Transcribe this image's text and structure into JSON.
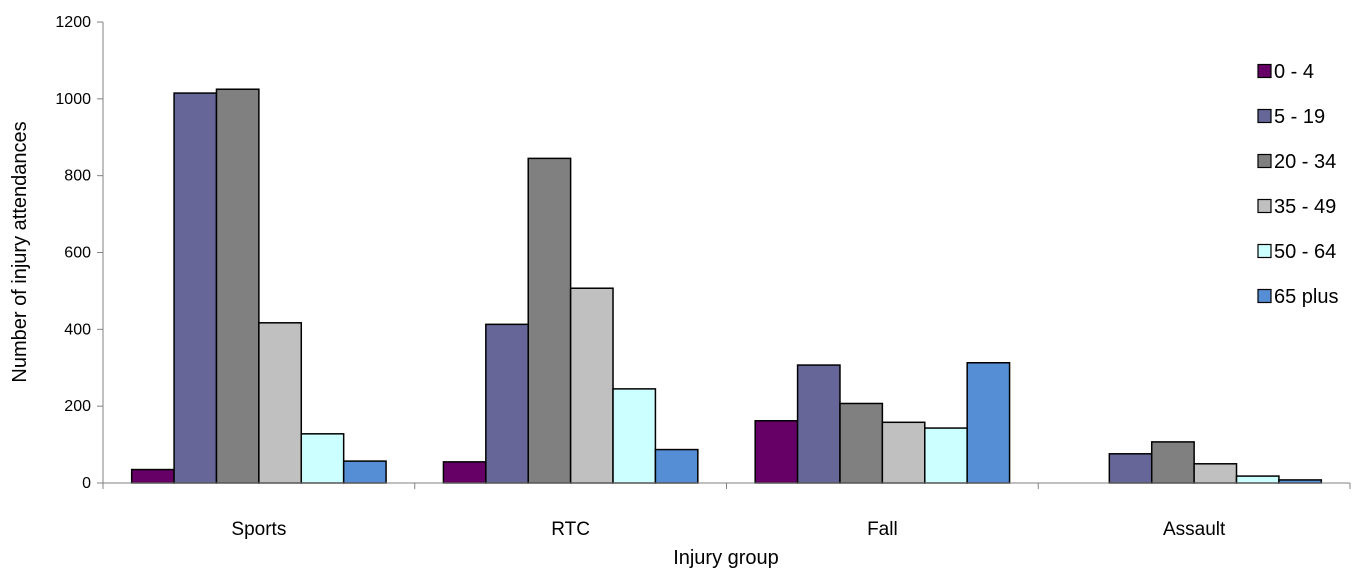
{
  "chart_data": {
    "type": "bar",
    "title": "",
    "xlabel": "Injury group",
    "ylabel": "Number of injury attendances",
    "ylim": [
      0,
      1200
    ],
    "yticks": [
      0,
      200,
      400,
      600,
      800,
      1000,
      1200
    ],
    "categories": [
      "Sports",
      "RTC",
      "Fall",
      "Assault"
    ],
    "series": [
      {
        "name": "0 - 4",
        "color": "#660066",
        "values": [
          35,
          55,
          162,
          0
        ]
      },
      {
        "name": "5 - 19",
        "color": "#666699",
        "values": [
          1015,
          413,
          307,
          76
        ]
      },
      {
        "name": "20 - 34",
        "color": "#808080",
        "values": [
          1025,
          845,
          207,
          107
        ]
      },
      {
        "name": "35 - 49",
        "color": "#c0c0c0",
        "values": [
          417,
          507,
          158,
          50
        ]
      },
      {
        "name": "50 - 64",
        "color": "#ccffff",
        "values": [
          128,
          245,
          143,
          18
        ]
      },
      {
        "name": "65 plus",
        "color": "#558ed5",
        "values": [
          57,
          87,
          313,
          8
        ]
      }
    ],
    "grid": false,
    "legend": "right"
  }
}
